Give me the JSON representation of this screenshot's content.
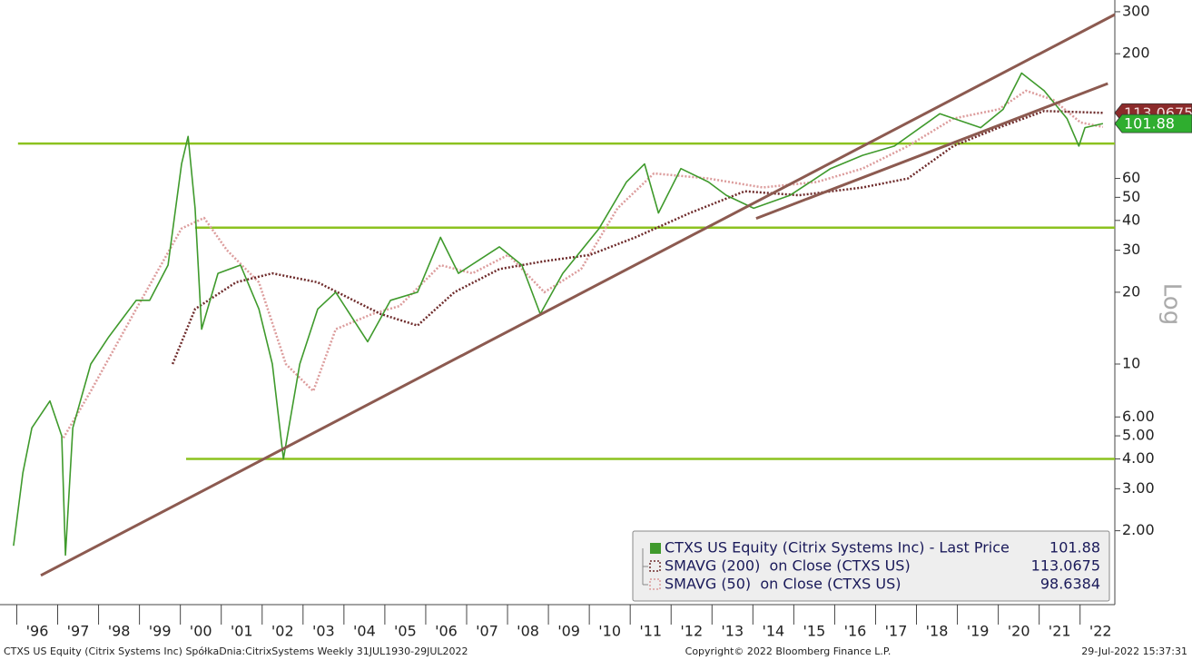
{
  "chart_data": {
    "type": "line",
    "yscale": "log",
    "ylim": [
      0.98,
      336
    ],
    "yticks": [
      {
        "value": 2,
        "label": "2.00"
      },
      {
        "value": 3,
        "label": "3.00"
      },
      {
        "value": 4,
        "label": "4.00"
      },
      {
        "value": 5,
        "label": "5.00"
      },
      {
        "value": 6,
        "label": "6.00"
      },
      10,
      20,
      30,
      40,
      50,
      60,
      200,
      300
    ],
    "y_axis_label": "Log",
    "xlim": [
      1995.59,
      2022.85
    ],
    "xticks": [
      {
        "value": 1996.5,
        "label": "'96"
      },
      {
        "value": 1997.5,
        "label": "'97"
      },
      {
        "value": 1998.5,
        "label": "'98"
      },
      {
        "value": 1999.5,
        "label": "'99"
      },
      {
        "value": 2000.5,
        "label": "'00"
      },
      {
        "value": 2001.5,
        "label": "'01"
      },
      {
        "value": 2002.5,
        "label": "'02"
      },
      {
        "value": 2003.5,
        "label": "'03"
      },
      {
        "value": 2004.5,
        "label": "'04"
      },
      {
        "value": 2005.5,
        "label": "'05"
      },
      {
        "value": 2006.5,
        "label": "'06"
      },
      {
        "value": 2007.5,
        "label": "'07"
      },
      {
        "value": 2008.5,
        "label": "'08"
      },
      {
        "value": 2009.5,
        "label": "'09"
      },
      {
        "value": 2010.5,
        "label": "'10"
      },
      {
        "value": 2011.5,
        "label": "'11"
      },
      {
        "value": 2012.5,
        "label": "'12"
      },
      {
        "value": 2013.5,
        "label": "'13"
      },
      {
        "value": 2014.5,
        "label": "'14"
      },
      {
        "value": 2015.5,
        "label": "'15"
      },
      {
        "value": 2016.5,
        "label": "'16"
      },
      {
        "value": 2017.5,
        "label": "'17"
      },
      {
        "value": 2018.5,
        "label": "'18"
      },
      {
        "value": 2019.5,
        "label": "'19"
      },
      {
        "value": 2020.5,
        "label": "'20"
      },
      {
        "value": 2021.5,
        "label": "'21"
      },
      {
        "value": 2022.5,
        "label": "'22"
      }
    ],
    "series": [
      {
        "name": "CTXS US Equity (Citrix Systems Inc) - Last Price",
        "last_label": "101.88",
        "color": "#3f9a2c",
        "style": "solid",
        "legend_icon": "filled",
        "x": [
          1995.92,
          1996.15,
          1996.37,
          1996.81,
          1997.1,
          1997.19,
          1997.37,
          1997.81,
          1998.25,
          1998.92,
          1999.25,
          1999.7,
          2000.03,
          2000.19,
          2000.36,
          2000.52,
          2000.92,
          2001.47,
          2001.92,
          2002.25,
          2002.52,
          2002.92,
          2003.36,
          2003.8,
          2004.58,
          2005.14,
          2005.8,
          2006.36,
          2006.8,
          2007.8,
          2008.35,
          2008.8,
          2009.35,
          2010.24,
          2010.91,
          2011.35,
          2011.69,
          2012.24,
          2012.91,
          2013.35,
          2014.02,
          2014.91,
          2015.9,
          2016.68,
          2017.46,
          2018.57,
          2019.57,
          2020.12,
          2020.57,
          2021.12,
          2021.68,
          2021.97,
          2022.12,
          2022.56
        ],
        "values": [
          1.73,
          3.5,
          5.4,
          7.0,
          5.0,
          1.58,
          5.4,
          10,
          13,
          18.5,
          18.5,
          26,
          69,
          90,
          45,
          14,
          24,
          26,
          17,
          10,
          4.0,
          10,
          17,
          20,
          12.4,
          18.5,
          20,
          34,
          24,
          31,
          26,
          16.2,
          24,
          37,
          58,
          69,
          43,
          66,
          58,
          51,
          45,
          51,
          66,
          75,
          82,
          112,
          98,
          117,
          166,
          140,
          107,
          82,
          98,
          101.88
        ]
      },
      {
        "name": "SMAVG (200)  on Close (CTXS US)",
        "last_label": "113.0675",
        "color": "#6e2b2b",
        "style": "dotted",
        "legend_icon": "dotted",
        "x": [
          1999.81,
          2000.36,
          2001.36,
          2002.25,
          2003.36,
          2004.9,
          2005.8,
          2006.7,
          2007.8,
          2008.9,
          2010.02,
          2011.13,
          2012.46,
          2013.8,
          2015.13,
          2016.68,
          2017.79,
          2018.9,
          2020.01,
          2021.12,
          2022.56
        ],
        "values": [
          10,
          17,
          22,
          24,
          22,
          16.2,
          14.5,
          20,
          25,
          27,
          28.7,
          34,
          43,
          53,
          51,
          55,
          60,
          82,
          98,
          115,
          113.0675
        ]
      },
      {
        "name": "SMAVG (50)  on Close (CTXS US)",
        "last_label": "98.6384",
        "color": "#dc9c9c",
        "style": "dotted",
        "legend_icon": "dotted",
        "x": [
          1997.14,
          1997.81,
          1998.92,
          2000.03,
          2000.58,
          2001.14,
          2001.92,
          2002.58,
          2003.25,
          2003.8,
          2004.69,
          2005.36,
          2006.36,
          2007.14,
          2008.02,
          2008.9,
          2009.8,
          2010.69,
          2011.58,
          2012.91,
          2014.24,
          2015.57,
          2016.68,
          2017.79,
          2018.9,
          2020.01,
          2020.68,
          2021.35,
          2022.01,
          2022.56
        ],
        "values": [
          4.9,
          7.7,
          17,
          37,
          41,
          30,
          22,
          10,
          7.7,
          14,
          16.2,
          17.5,
          26,
          24,
          28.7,
          20,
          25,
          45,
          63,
          60,
          55,
          58,
          66,
          82,
          107,
          117,
          140,
          128,
          103,
          98.6384
        ]
      }
    ],
    "hlines": [
      {
        "value": 84,
        "x_start": 1996.03
      },
      {
        "value": 37.3,
        "x_start": 2000.36
      },
      {
        "value": 4,
        "x_start": 2000.14
      }
    ],
    "hline_color": "#8cc21f",
    "trendlines": [
      {
        "x": [
          1996.59,
          2022.85
        ],
        "values": [
          1.3,
          292
        ]
      },
      {
        "x": [
          2014.08,
          2022.68
        ],
        "values": [
          40.8,
          150
        ]
      }
    ],
    "trendline_color": "#8c5a50",
    "footer": {
      "left": "CTXS US Equity (Citrix Systems Inc) SpółkaDnia:CitrixSystems  Weekly 31JUL1930-29JUL2022",
      "center": "Copyright© 2022 Bloomberg Finance L.P.",
      "right": "29-Jul-2022 15:37:31"
    }
  }
}
